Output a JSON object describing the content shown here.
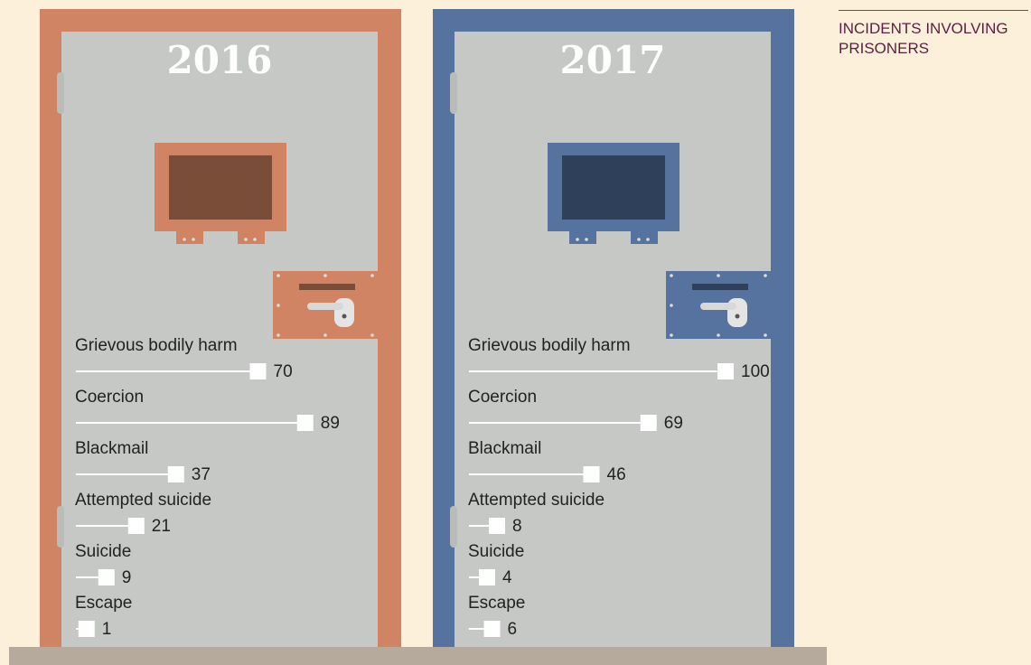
{
  "title": "INCIDENTS INVOLVING PRISONERS",
  "chart_data": [
    {
      "type": "bar",
      "title": "2016",
      "categories": [
        "Grievous bodily harm",
        "Coercion",
        "Blackmail",
        "Attempted suicide",
        "Suicide",
        "Escape"
      ],
      "values": [
        70,
        89,
        37,
        21,
        9,
        1
      ],
      "color": "#d08463",
      "dark": "#7a4d38"
    },
    {
      "type": "bar",
      "title": "2017",
      "categories": [
        "Grievous bodily harm",
        "Coercion",
        "Blackmail",
        "Attempted suicide",
        "Suicide",
        "Escape"
      ],
      "values": [
        100,
        69,
        46,
        8,
        4,
        6
      ],
      "color": "#56729f",
      "dark": "#2f405a"
    }
  ]
}
